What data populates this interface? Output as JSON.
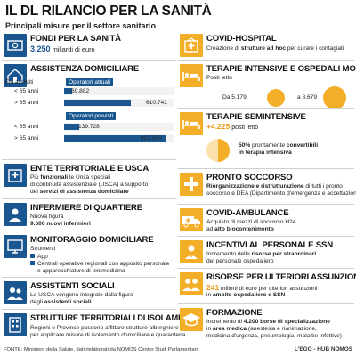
{
  "header": {
    "title": "IL DL RILANCIO PER LA SANITÀ",
    "subtitle": "Principali misure per il settore sanitario"
  },
  "left": {
    "fondi": {
      "title": "FONDI PER LA SANITÀ",
      "value": "3,250",
      "unit": "miliardi di euro"
    },
    "assistenza": {
      "title": "ASSISTENZA DOMICILIARE",
      "eta_label": "Età assistiti",
      "attuali_label": "Operatori attuali",
      "previsti_label": "Operatori previsti",
      "attuali": [
        {
          "age": "< 65 anni",
          "value_label": "69.882"
        },
        {
          "age": "> 65 anni",
          "value_label": "610.741"
        }
      ],
      "previsti": [
        {
          "age": "< 65 anni",
          "value_label": "139.728"
        },
        {
          "age": "> 65 anni",
          "value_label": "923.500"
        }
      ]
    },
    "enti": {
      "title": "ENTE TERRITORIALE E USCA",
      "line1_a": "Più ",
      "line1_b": "funzionali",
      "line1_c": " le Unità speciali",
      "line2": "di continuità assistenziale (USCA) a supporto",
      "line3_a": "dei ",
      "line3_b": "servizi di assistenza domiciliare"
    },
    "infermiere": {
      "title": "INFERMIERE DI QUARTIERE",
      "line1": "Nuova figura",
      "line2": "9.600 nuovi infermieri"
    },
    "monitoraggio": {
      "title": "MONITORAGGIO DOMICILIARE",
      "line1": "Strumenti",
      "item1": "App",
      "item2a": "Centrali operative regionali con apposito personale",
      "item2b": "e apparecchiature di telemedicina"
    },
    "assistenti": {
      "title": "ASSISTENTI SOCIALI",
      "line1": "Le USCA vengono integrate dalla figura",
      "line2_a": "degli ",
      "line2_b": "assistenti sociali"
    },
    "strutture": {
      "title": "STRUTTURE TERRITORIALI DI ISOLAMENTO",
      "line1": "Regioni e Province possono affittare strutture alberghiere",
      "line2": "per applicare misure di isolamento domiciliare e quarantena"
    }
  },
  "right": {
    "covid_hospital": {
      "title": "COVID-HOSPITAL",
      "line1_a": "Creazione di ",
      "line1_b": "strutture ad hoc",
      "line1_c": " per curare i contagiati"
    },
    "terapie": {
      "title": "TERAPIE INTENSIVE E OSPEDALI MOBILI",
      "posti": "Posti letto",
      "from_label": "Da 5.179",
      "to_label": "a 8.679"
    },
    "semintensive": {
      "title": "TERAPIE SEMINTENSIVE",
      "value": "+4.225",
      "unit": "posti letto",
      "pct_a": "50%",
      "pct_b": " prontamente ",
      "pct_c": "convertibili",
      "pct_d": "in terapia intensiva",
      "fraction": 0.5
    },
    "pronto": {
      "title": "PRONTO SOCCORSO",
      "line1_a": "Riorganizzazione e ristrutturazione",
      "line1_b": " di tutti i pronto",
      "line2": "soccorso e DEA (Dipartimento d'emergenza e accettazione)"
    },
    "ambulance": {
      "title": "COVID-AMBULANCE",
      "line1": "Acquisto di mezzi di soccorso H24",
      "line2_a": "ad ",
      "line2_b": "alto biocontenimento"
    },
    "incentivi": {
      "title": "INCENTIVI AL PERSONALE SSN",
      "line1_a": "Incremento delle ",
      "line1_b": "risorse per straordinari",
      "line2": "del personale ospedaliero"
    },
    "risorse": {
      "title": "RISORSE PER ULTERIORI ASSUNZIONI",
      "value": "241",
      "line1": " milioni di euro per ulteriori assunzioni",
      "line2_a": "in ",
      "line2_b": "ambito ospedaliero e SSN"
    },
    "formazione": {
      "title": "FORMAZIONE",
      "line1_a": "Incremento di ",
      "line1_b": "4.200 borse di specializzazione",
      "line2_a": "in ",
      "line2_b": "area medica",
      "line2_c": " (anestesia e rianimazione,",
      "line3": "medicina d'urgenza, pneumologia, malattie infettive)"
    }
  },
  "footer": {
    "source": "FONTE: Ministero della Salute, dati rielaborati da NOMOS Centro Studi Parlamentari",
    "brand": "L'EGO - HUB NOMOS"
  },
  "chart_data": [
    {
      "type": "bar",
      "title": "",
      "categories": [
        "< 65 anni",
        "> 65 anni"
      ],
      "series": [
        {
          "name": "Operatori attuali",
          "values": [
            69882,
            610741
          ]
        },
        {
          "name": "Operatori previsti",
          "values": [
            139728,
            923500
          ]
        }
      ]
    },
    {
      "type": "bubble",
      "title": "",
      "categories": [
        "Da 5.179",
        "a 8.679"
      ],
      "values": [
        5179,
        8679
      ]
    }
  ],
  "colors": {
    "blue": "#1a5690",
    "orange": "#f3ae28"
  },
  "icons": [
    "money-icon",
    "house-icon",
    "hospital-icon",
    "nurse-icon",
    "monitor-icon",
    "social-worker-icon",
    "building-icon",
    "covid-hospital-icon",
    "hospital-bed-icon",
    "bed-icon",
    "emergency-icon",
    "ambulance-icon",
    "medic-icon",
    "staff-icon",
    "graduation-icon"
  ]
}
